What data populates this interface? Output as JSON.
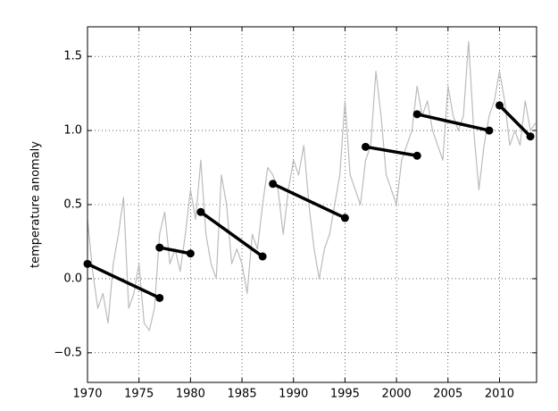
{
  "chart_data": {
    "type": "line",
    "ylabel": "temperature anomaly",
    "xlim": [
      1970,
      2013.6
    ],
    "ylim": [
      -0.7,
      1.7
    ],
    "xticks": [
      1970,
      1975,
      1980,
      1985,
      1990,
      1995,
      2000,
      2005,
      2010
    ],
    "yticks": [
      {
        "value": -0.5,
        "label": "−0.5"
      },
      {
        "value": 0,
        "label": "0.0"
      },
      0.5,
      {
        "value": 1,
        "label": "1.0"
      },
      1.5
    ],
    "grid": true,
    "series": [
      {
        "color": "#bbbbbb",
        "markers": false,
        "x": [
          1970,
          1970.5,
          1971,
          1971.5,
          1972,
          1972.5,
          1973,
          1973.5,
          1974,
          1974.5,
          1975,
          1975.5,
          1976,
          1976.5,
          1977,
          1977.5,
          1978,
          1978.5,
          1979,
          1979.5,
          1980,
          1980.5,
          1981,
          1981.5,
          1982,
          1982.5,
          1983,
          1983.5,
          1984,
          1984.5,
          1985,
          1985.5,
          1986,
          1986.5,
          1987,
          1987.5,
          1988,
          1988.5,
          1989,
          1989.5,
          1990,
          1990.5,
          1991,
          1991.5,
          1992,
          1992.5,
          1993,
          1993.5,
          1994,
          1994.5,
          1995,
          1995.5,
          1996,
          1996.5,
          1997,
          1997.5,
          1998,
          1998.5,
          1999,
          1999.5,
          2000,
          2000.5,
          2001,
          2001.5,
          2002,
          2002.5,
          2003,
          2003.5,
          2004,
          2004.5,
          2005,
          2005.5,
          2006,
          2006.5,
          2007,
          2007.5,
          2008,
          2008.5,
          2009,
          2009.5,
          2010,
          2010.5,
          2011,
          2011.5,
          2012,
          2012.5,
          2013,
          2013.5
        ],
        "values": [
          0.4,
          0.05,
          -0.2,
          -0.1,
          -0.3,
          0.1,
          0.3,
          0.55,
          -0.2,
          -0.1,
          0.1,
          -0.3,
          -0.35,
          -0.2,
          0.3,
          0.45,
          0.1,
          0.2,
          0.05,
          0.3,
          0.6,
          0.4,
          0.8,
          0.3,
          0.1,
          0.0,
          0.7,
          0.5,
          0.1,
          0.2,
          0.1,
          -0.1,
          0.3,
          0.2,
          0.5,
          0.75,
          0.7,
          0.6,
          0.3,
          0.6,
          0.8,
          0.7,
          0.9,
          0.5,
          0.2,
          0.0,
          0.2,
          0.3,
          0.5,
          0.7,
          1.2,
          0.7,
          0.6,
          0.5,
          0.8,
          0.9,
          1.4,
          1.1,
          0.7,
          0.6,
          0.5,
          0.8,
          0.9,
          1.0,
          1.3,
          1.1,
          1.2,
          1.0,
          0.9,
          0.8,
          1.3,
          1.1,
          1.0,
          1.1,
          1.6,
          1.0,
          0.6,
          0.9,
          1.1,
          1.2,
          1.4,
          1.2,
          0.9,
          1.0,
          0.9,
          1.2,
          1.0,
          1.05
        ]
      },
      {
        "color": "#000000",
        "markers": true,
        "x": [
          1970,
          1977
        ],
        "values": [
          0.1,
          -0.13
        ]
      },
      {
        "color": "#000000",
        "markers": true,
        "x": [
          1977,
          1980
        ],
        "values": [
          0.21,
          0.17
        ]
      },
      {
        "color": "#000000",
        "markers": true,
        "x": [
          1981,
          1987
        ],
        "values": [
          0.45,
          0.15
        ]
      },
      {
        "color": "#000000",
        "markers": true,
        "x": [
          1988,
          1995
        ],
        "values": [
          0.64,
          0.41
        ]
      },
      {
        "color": "#000000",
        "markers": true,
        "x": [
          1997,
          2002
        ],
        "values": [
          0.89,
          0.83
        ]
      },
      {
        "color": "#000000",
        "markers": true,
        "x": [
          2002,
          2009
        ],
        "values": [
          1.11,
          1.0
        ]
      },
      {
        "color": "#000000",
        "markers": true,
        "x": [
          2010,
          2013
        ],
        "values": [
          1.17,
          0.96
        ]
      }
    ]
  }
}
